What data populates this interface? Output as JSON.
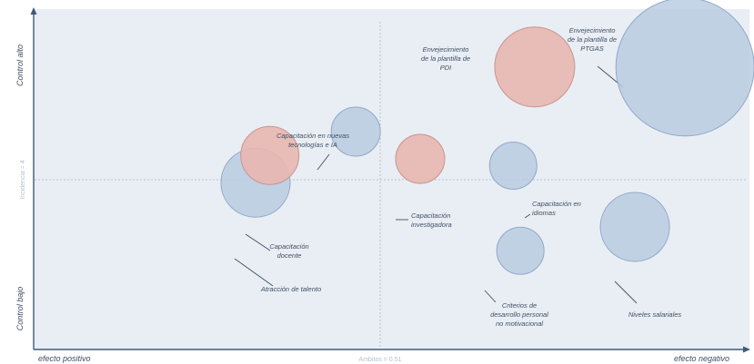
{
  "chart_data": {
    "type": "scatter",
    "title": "",
    "xlabel_left": "efecto positivo",
    "xlabel_right": "efecto negativo",
    "ylabel_top": "Control alto",
    "ylabel_bottom": "Control bajo",
    "x_divider_label": "Ambitos = 0.51",
    "y_divider_label": "Incidencia = 4",
    "grid": false,
    "colors": {
      "blue": "#b8cbe0",
      "red": "#e8b6b0",
      "blue_stroke": "#8fa9c6",
      "red_stroke": "#c8958f",
      "background": "#e9eef5"
    },
    "points": [
      {
        "label": "Atracción de talento",
        "x": 0.31,
        "y": 0.49,
        "size": 0.38,
        "color": "blue"
      },
      {
        "label": "Capacitación docente",
        "x": 0.33,
        "y": 0.57,
        "size": 0.32,
        "color": "red"
      },
      {
        "label": "Capacitación en nuevas tecnologías e IA",
        "x": 0.45,
        "y": 0.64,
        "size": 0.27,
        "color": "blue"
      },
      {
        "label": "Capacitación investigadora",
        "x": 0.54,
        "y": 0.56,
        "size": 0.27,
        "color": "red"
      },
      {
        "label": "Envejecimiento de la plantilla de PDI",
        "x": 0.7,
        "y": 0.83,
        "size": 0.44,
        "color": "red"
      },
      {
        "label": "Capacitación en idiomas",
        "x": 0.67,
        "y": 0.54,
        "size": 0.26,
        "color": "blue"
      },
      {
        "label": "Criterios de desarrollo personal no motivacional",
        "x": 0.68,
        "y": 0.29,
        "size": 0.26,
        "color": "blue"
      },
      {
        "label": "Envejecimiento de la plantilla de PTGAS",
        "x": 0.91,
        "y": 0.83,
        "size": 0.76,
        "color": "blue"
      },
      {
        "label": "Niveles salariales",
        "x": 0.84,
        "y": 0.36,
        "size": 0.38,
        "color": "blue"
      }
    ]
  }
}
